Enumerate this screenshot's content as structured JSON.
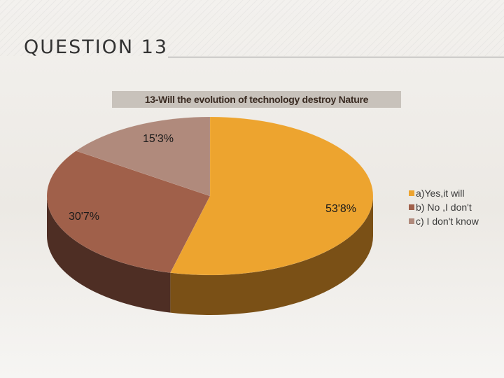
{
  "slide": {
    "title": "QUESTION 13"
  },
  "chart_data": {
    "type": "pie",
    "title": "13-Will the evolution of technology destroy Nature",
    "categories": [
      "a)Yes,it will",
      "b) No ,I don't",
      "c) I don't know"
    ],
    "values": [
      53.8,
      30.7,
      15.3
    ],
    "data_labels": [
      "53'8%",
      "30'7%",
      "15'3%"
    ],
    "colors": [
      "#eda42f",
      "#a0604a",
      "#b08a7c"
    ],
    "side_colors": [
      "#7a5016",
      "#4e2e24",
      "#5a4038"
    ],
    "legend_position": "right",
    "three_d": true
  }
}
